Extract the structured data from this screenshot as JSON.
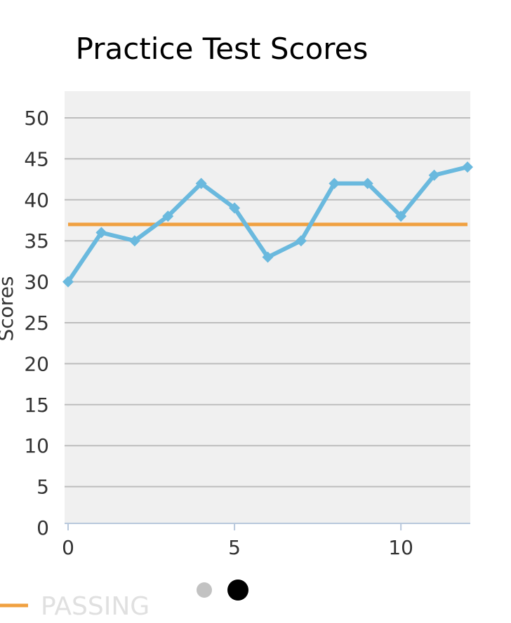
{
  "chart_data": {
    "type": "line",
    "title": "Practice Test Scores",
    "ylabel": "Scores",
    "xlim": [
      0,
      12
    ],
    "ylim": [
      0,
      50
    ],
    "x_ticks": [
      0,
      5,
      10
    ],
    "y_ticks": [
      0,
      5,
      10,
      15,
      20,
      25,
      30,
      35,
      40,
      45,
      50
    ],
    "grid": true,
    "series": [
      {
        "x": [
          0,
          1,
          2,
          3,
          4,
          5,
          6,
          7,
          8,
          9,
          10,
          11,
          12
        ],
        "values": [
          30,
          36,
          35,
          38,
          42,
          39,
          33,
          35,
          42,
          42,
          38,
          43,
          44
        ],
        "color": "#6ab9de",
        "marker": "diamond"
      },
      {
        "name": "PASSING",
        "x": [
          0,
          12
        ],
        "values": [
          37,
          37
        ],
        "color": "#f0a040"
      }
    ],
    "legend": {
      "position": "bottom-left"
    },
    "plot_background": "#f0f0f0",
    "grid_color": "#bdbdbd"
  },
  "pager": {
    "dots": [
      {
        "color": "#c2c2c2",
        "active": false
      },
      {
        "color": "#000000",
        "active": true
      }
    ]
  }
}
